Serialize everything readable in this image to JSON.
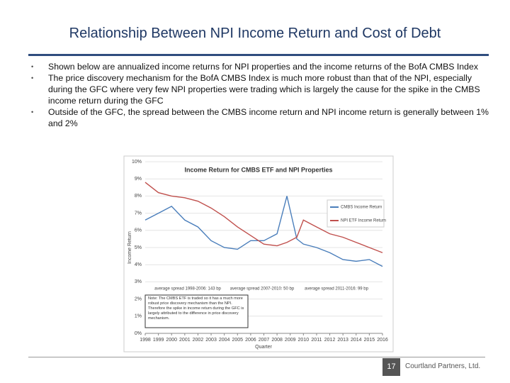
{
  "header": {
    "title": "Relationship Between NPI Income Return and Cost of Debt"
  },
  "bullets": [
    "Shown below are annualized income returns for NPI properties and the income returns of the BofA CMBS Index",
    "The price discovery mechanism for the BofA CMBS Index is much more robust than that of the NPI, especially during the GFC where very few NPI properties were trading which is largely the cause for the spike in the CMBS income return during the GFC",
    "Outside of the GFC, the spread between the CMBS income return and NPI income return is generally between 1% and 2%"
  ],
  "chart_data": {
    "type": "line",
    "title": "Income Return for CMBS ETF and NPI Properties",
    "y_label": "Income Return",
    "x_label": "Quarter",
    "x": [
      1998,
      1999,
      2000,
      2001,
      2002,
      2003,
      2004,
      2005,
      2006,
      2007,
      2008,
      2008.75,
      2009.5,
      2010,
      2011,
      2012,
      2013,
      2014,
      2015,
      2016
    ],
    "series": [
      {
        "name": "CMBS Income Return",
        "color": "#4a7ebb",
        "values": [
          6.6,
          7.0,
          7.4,
          6.6,
          6.2,
          5.4,
          5.0,
          4.9,
          5.4,
          5.4,
          5.8,
          8.0,
          5.5,
          5.2,
          5.0,
          4.7,
          4.3,
          4.2,
          4.3,
          3.9
        ]
      },
      {
        "name": "NPI ETF Income Return",
        "color": "#c0504d",
        "values": [
          8.8,
          8.2,
          8.0,
          7.9,
          7.7,
          7.3,
          6.8,
          6.2,
          5.7,
          5.2,
          5.1,
          5.3,
          5.6,
          6.6,
          6.2,
          5.8,
          5.6,
          5.3,
          5.0,
          4.7
        ]
      }
    ],
    "xlim": [
      1998,
      2016
    ],
    "xticks": [
      1998,
      1999,
      2000,
      2001,
      2002,
      2003,
      2004,
      2005,
      2006,
      2007,
      2008,
      2009,
      2010,
      2011,
      2012,
      2013,
      2014,
      2015,
      2016
    ],
    "ylim": [
      0,
      10
    ],
    "yticks": [
      {
        "value": 0,
        "label": "0%"
      },
      {
        "value": 1,
        "label": "1%"
      },
      {
        "value": 2,
        "label": "2%"
      },
      {
        "value": 3,
        "label": "3%"
      },
      {
        "value": 4,
        "label": "4%"
      },
      {
        "value": 5,
        "label": "5%"
      },
      {
        "value": 6,
        "label": "6%"
      },
      {
        "value": 7,
        "label": "7%"
      },
      {
        "value": 8,
        "label": "8%"
      },
      {
        "value": 9,
        "label": "9%"
      },
      {
        "value": 10,
        "label": "10%"
      }
    ],
    "grid": true,
    "annotations": [
      "average spread 1998-2006: 143 bp",
      "average spread 2007-2010: 50 bp",
      "average spread 2011-2016: 99 bp"
    ],
    "note": "Note: The CMBS ETF is traded so it has a much more robust price discovery mechanism than the NPI. Therefore the spike in income return during the GFC is largely attributed to the difference in price discovery mechanism."
  },
  "footer": {
    "page_number": "17",
    "company": "Courtland Partners, Ltd."
  }
}
